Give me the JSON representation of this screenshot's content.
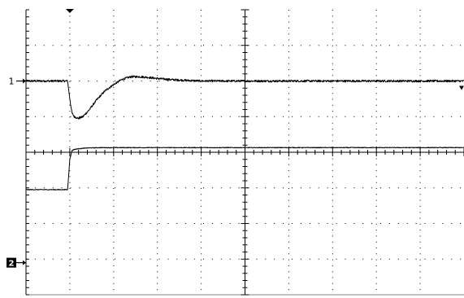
{
  "chart_data": {
    "type": "line",
    "title": "",
    "xlabel": "",
    "ylabel": "",
    "divisions": {
      "x": 10,
      "y": 8
    },
    "grid": true,
    "xlim": [
      0,
      10
    ],
    "ylim": [
      -4,
      4
    ],
    "trigger_position_div": 1,
    "markers": [
      {
        "id": "1",
        "label": "1",
        "level_div": 2.0,
        "style": "arrow"
      },
      {
        "id": "2",
        "label": "2",
        "level_div": -3.1,
        "style": "boxed"
      }
    ],
    "series": [
      {
        "channel": "1",
        "x": [
          0,
          0.5,
          0.95,
          1.0,
          1.05,
          1.1,
          1.2,
          1.3,
          1.45,
          1.6,
          1.8,
          2.0,
          2.2,
          2.4,
          2.6,
          2.8,
          3.0,
          3.3,
          3.6,
          4.0,
          5.0,
          6.0,
          7.0,
          8.0,
          9.0,
          10.0
        ],
        "values": [
          2.0,
          2.0,
          2.0,
          1.5,
          1.1,
          1.0,
          0.95,
          1.0,
          1.2,
          1.45,
          1.72,
          1.9,
          2.05,
          2.12,
          2.12,
          2.1,
          2.07,
          2.04,
          2.02,
          2.0,
          2.0,
          2.0,
          2.0,
          2.0,
          2.0,
          2.0
        ],
        "noise_div": 0.03
      },
      {
        "channel": "2",
        "x": [
          0,
          0.5,
          0.95,
          1.0,
          1.05,
          1.1,
          1.2,
          1.4,
          1.7,
          2.0,
          3.0,
          4.0,
          5.0,
          6.0,
          7.0,
          8.0,
          9.0,
          10.0
        ],
        "values": [
          -1.05,
          -1.05,
          -1.05,
          -0.2,
          0.05,
          0.08,
          0.1,
          0.12,
          0.13,
          0.13,
          0.13,
          0.13,
          0.13,
          0.13,
          0.13,
          0.13,
          0.13,
          0.13
        ],
        "noise_div": 0.01
      }
    ]
  }
}
